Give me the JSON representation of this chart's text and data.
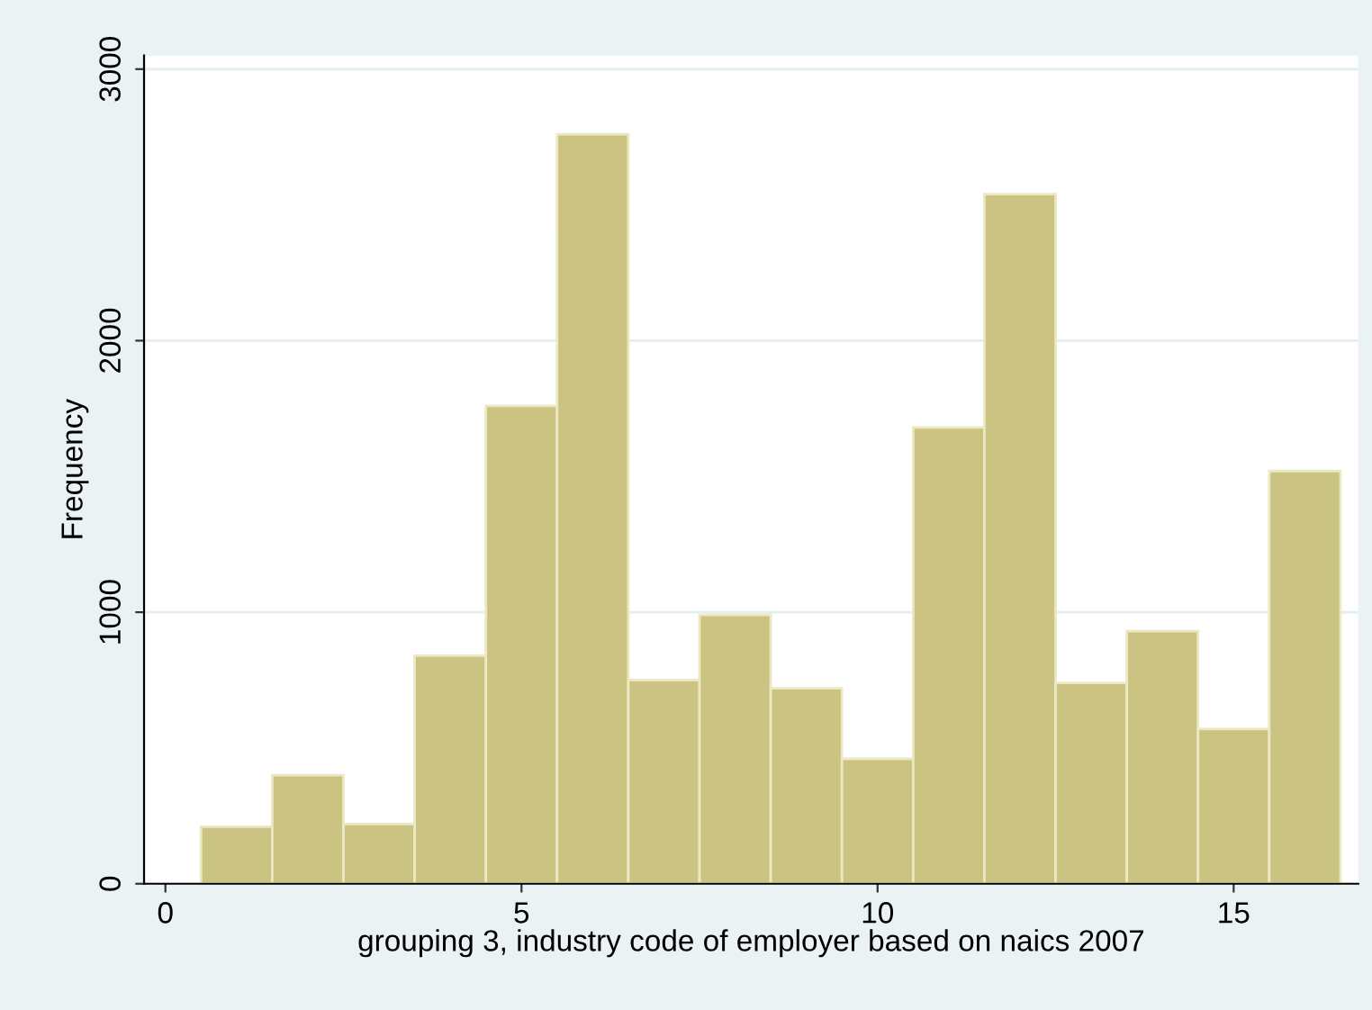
{
  "chart_data": {
    "type": "histogram",
    "xlabel": "grouping 3, industry code of employer based on naics 2007",
    "ylabel": "Frequency",
    "bins": [
      0.5,
      1.5,
      2.5,
      3.5,
      4.5,
      5.5,
      6.5,
      7.5,
      8.5,
      9.5,
      10.5,
      11.5,
      12.5,
      13.5,
      14.5,
      15.5,
      16.5
    ],
    "values": [
      210,
      400,
      220,
      840,
      1760,
      2760,
      750,
      990,
      720,
      460,
      1680,
      2540,
      740,
      930,
      570,
      1520
    ],
    "color": "#cbc381",
    "xlim": [
      -0.3,
      16.75
    ],
    "ylim": [
      0,
      3050
    ],
    "xticks": [
      0,
      5,
      10,
      15
    ],
    "yticks": [
      0,
      1000,
      2000,
      3000
    ],
    "grid": "y"
  }
}
